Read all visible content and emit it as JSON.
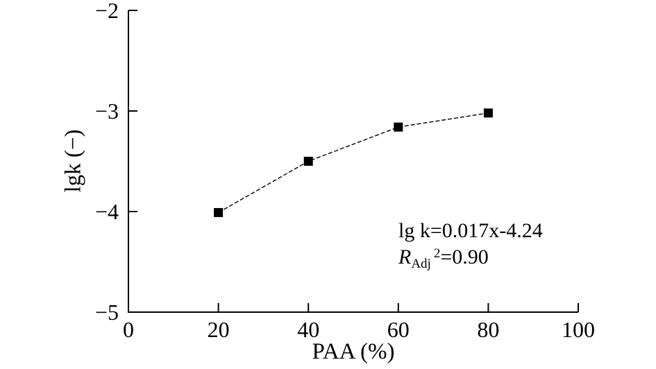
{
  "chart_data": {
    "type": "line",
    "xlabel": "PAA (%)",
    "ylabel": "lgk (−)",
    "x": [
      20,
      40,
      60,
      80
    ],
    "y": [
      -4.01,
      -3.5,
      -3.16,
      -3.02
    ],
    "xlim": [
      0,
      100
    ],
    "ylim": [
      -5,
      -2
    ],
    "xticks": [
      0,
      20,
      40,
      60,
      80,
      100
    ],
    "yticks": [
      -5,
      -4,
      -3,
      -2
    ],
    "grid": false,
    "legend": null,
    "marker": "filled-square",
    "line_style": "dashed",
    "series_color": "#000000",
    "background_color": "#ffffff",
    "annotation": {
      "equation": "lg k=0.017x-4.24",
      "r_symbol": "R",
      "r_subscript": "Adj",
      "r_superscript": "2",
      "r_value": "=0.90"
    }
  }
}
